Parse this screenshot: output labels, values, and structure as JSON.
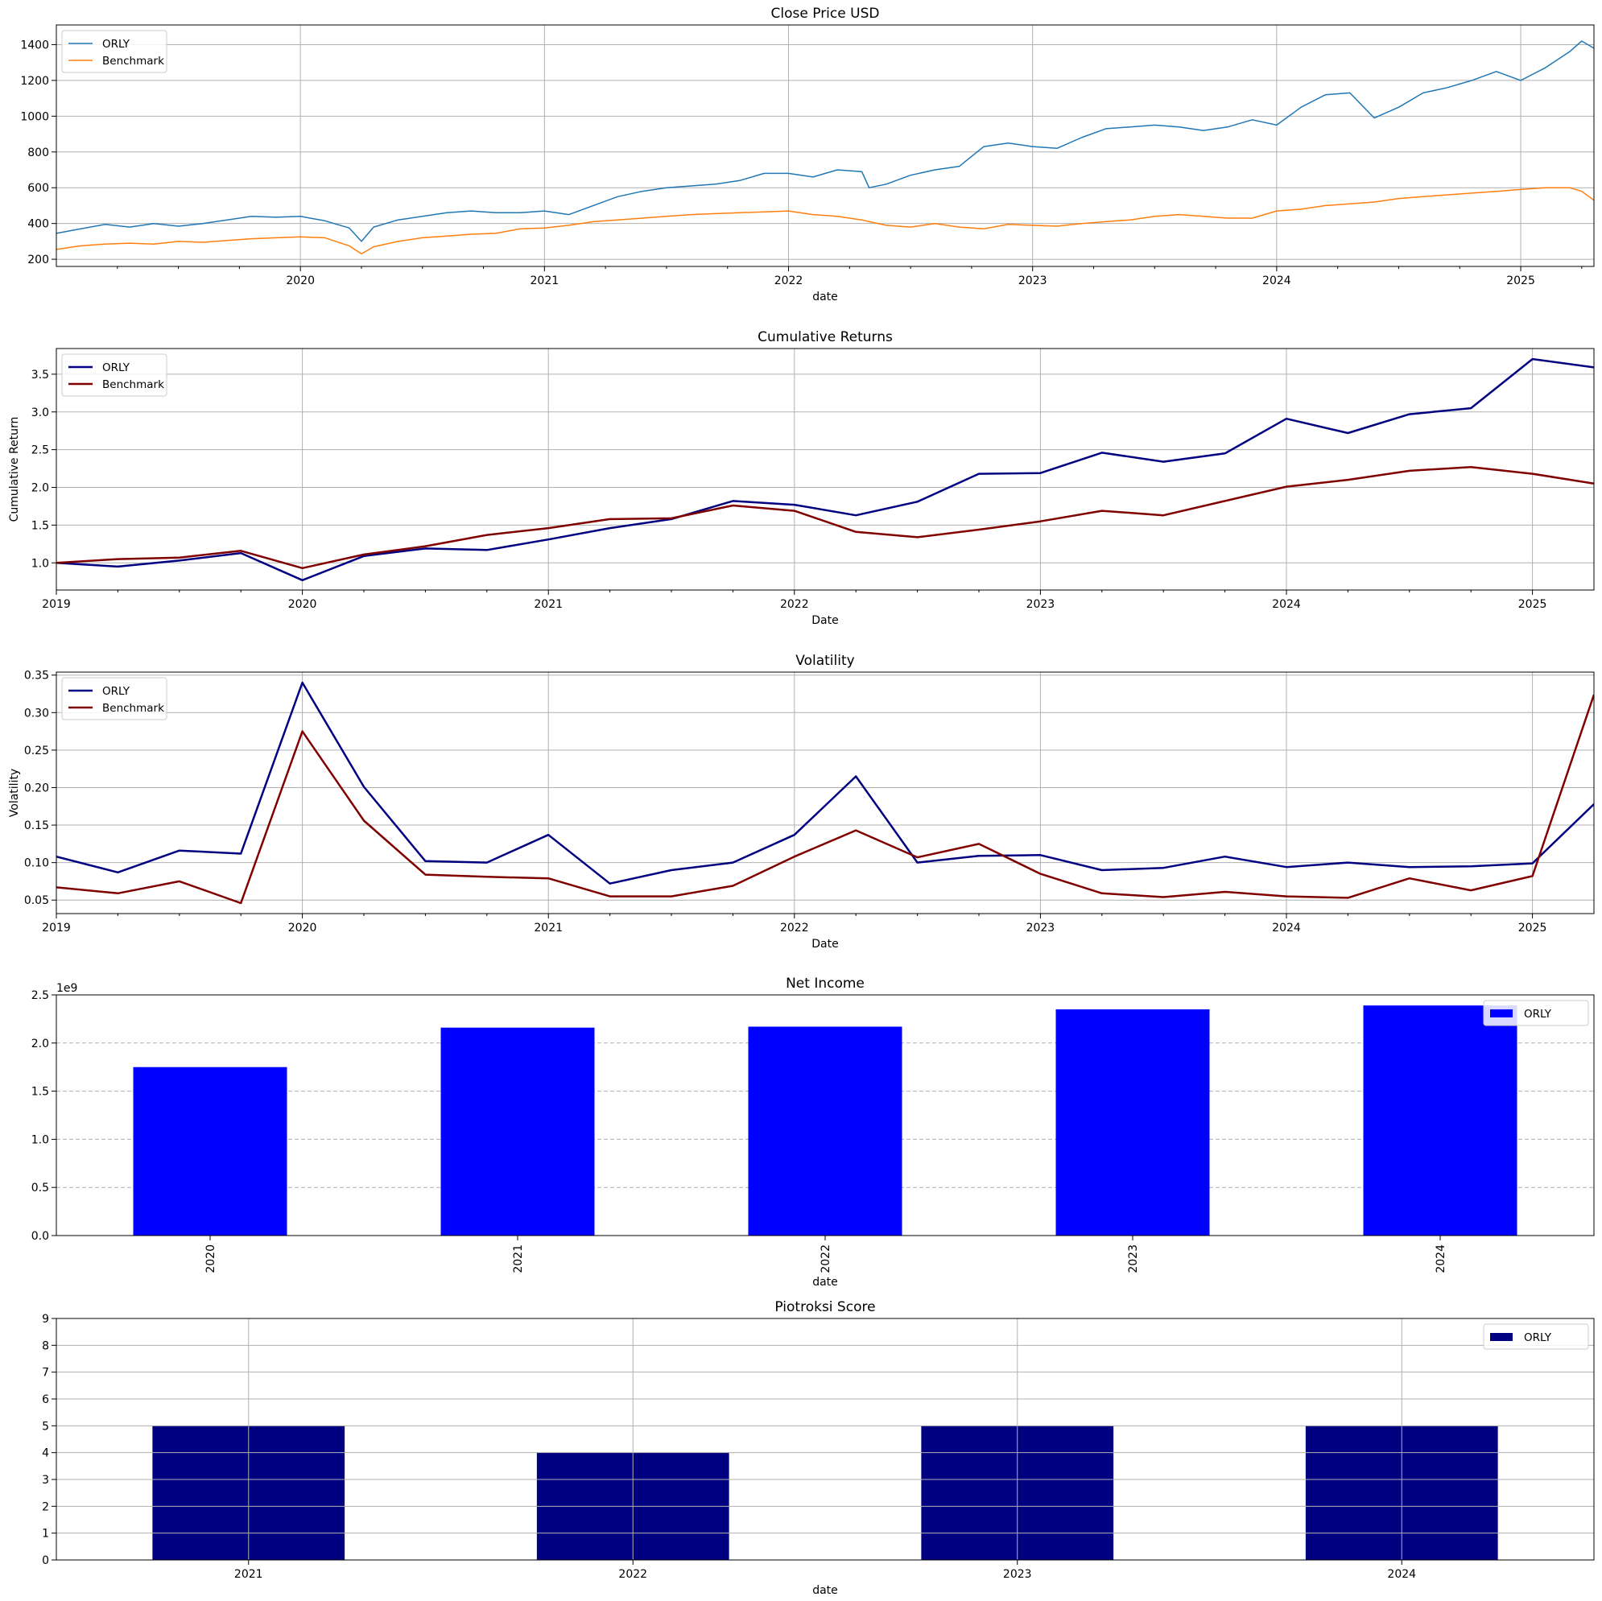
{
  "figure": {
    "background": "#ffffff"
  },
  "chart_data": [
    {
      "id": "close-price",
      "type": "line",
      "title": "Close Price USD",
      "xlabel": "date",
      "ylabel": "",
      "xlim": [
        2019.0,
        2025.3
      ],
      "ylim": [
        160,
        1510
      ],
      "xticks": [
        2020,
        2021,
        2022,
        2023,
        2024,
        2025
      ],
      "xticklabels": [
        "2020",
        "2021",
        "2022",
        "2023",
        "2024",
        "2025"
      ],
      "minor_xticks": true,
      "yticks": [
        200,
        400,
        600,
        800,
        1000,
        1200,
        1400
      ],
      "yticklabels": [
        "200",
        "400",
        "600",
        "800",
        "1000",
        "1200",
        "1400"
      ],
      "grid": true,
      "legend_position": "top-left",
      "x": [
        2019.0,
        2019.1,
        2019.2,
        2019.3,
        2019.4,
        2019.5,
        2019.6,
        2019.7,
        2019.8,
        2019.9,
        2020.0,
        2020.1,
        2020.2,
        2020.25,
        2020.3,
        2020.4,
        2020.5,
        2020.6,
        2020.7,
        2020.8,
        2020.9,
        2021.0,
        2021.1,
        2021.2,
        2021.3,
        2021.4,
        2021.5,
        2021.6,
        2021.7,
        2021.8,
        2021.9,
        2022.0,
        2022.1,
        2022.2,
        2022.3,
        2022.33,
        2022.4,
        2022.5,
        2022.6,
        2022.7,
        2022.8,
        2022.9,
        2023.0,
        2023.1,
        2023.2,
        2023.3,
        2023.4,
        2023.5,
        2023.6,
        2023.7,
        2023.8,
        2023.9,
        2024.0,
        2024.1,
        2024.2,
        2024.3,
        2024.4,
        2024.5,
        2024.6,
        2024.7,
        2024.8,
        2024.9,
        2025.0,
        2025.1,
        2025.2,
        2025.25,
        2025.3
      ],
      "series": [
        {
          "name": "ORLY",
          "color": "#1f77b4",
          "width": 1.5,
          "values": [
            345,
            370,
            395,
            380,
            400,
            385,
            400,
            420,
            440,
            435,
            440,
            415,
            375,
            300,
            380,
            420,
            440,
            460,
            470,
            460,
            460,
            470,
            450,
            500,
            550,
            580,
            600,
            610,
            620,
            640,
            680,
            680,
            660,
            700,
            690,
            600,
            620,
            670,
            700,
            720,
            830,
            850,
            830,
            820,
            880,
            930,
            940,
            950,
            940,
            920,
            940,
            980,
            950,
            1050,
            1120,
            1130,
            990,
            1050,
            1130,
            1160,
            1200,
            1250,
            1200,
            1270,
            1360,
            1420,
            1380
          ]
        },
        {
          "name": "Benchmark",
          "color": "#ff7f0e",
          "width": 1.5,
          "values": [
            255,
            275,
            285,
            290,
            285,
            300,
            295,
            305,
            315,
            320,
            325,
            320,
            275,
            230,
            270,
            300,
            320,
            330,
            340,
            345,
            370,
            375,
            390,
            410,
            420,
            430,
            440,
            450,
            455,
            460,
            465,
            470,
            450,
            440,
            420,
            410,
            390,
            380,
            400,
            380,
            370,
            395,
            390,
            385,
            400,
            410,
            420,
            440,
            450,
            440,
            430,
            430,
            470,
            480,
            500,
            510,
            520,
            540,
            550,
            560,
            570,
            580,
            590,
            600,
            600,
            580,
            530
          ]
        }
      ]
    },
    {
      "id": "cumulative-returns",
      "type": "line",
      "title": "Cumulative Returns",
      "xlabel": "Date",
      "ylabel": "Cumulative Return",
      "xlim": [
        2019.0,
        2025.25
      ],
      "ylim": [
        0.64,
        3.84
      ],
      "xticks": [
        2019,
        2020,
        2021,
        2022,
        2023,
        2024,
        2025
      ],
      "xticklabels": [
        "2019",
        "2020",
        "2021",
        "2022",
        "2023",
        "2024",
        "2025"
      ],
      "minor_xticks": true,
      "yticks": [
        1.0,
        1.5,
        2.0,
        2.5,
        3.0,
        3.5
      ],
      "yticklabels": [
        "1.0",
        "1.5",
        "2.0",
        "2.5",
        "3.0",
        "3.5"
      ],
      "grid": true,
      "legend_position": "top-left",
      "x": [
        2019.0,
        2019.25,
        2019.5,
        2019.75,
        2020.0,
        2020.25,
        2020.5,
        2020.75,
        2021.0,
        2021.25,
        2021.5,
        2021.75,
        2022.0,
        2022.25,
        2022.5,
        2022.75,
        2023.0,
        2023.25,
        2023.5,
        2023.75,
        2024.0,
        2024.25,
        2024.5,
        2024.75,
        2025.0,
        2025.25
      ],
      "series": [
        {
          "name": "ORLY",
          "color": "#000080",
          "width": 2.5,
          "values": [
            1.0,
            0.95,
            1.03,
            1.13,
            0.77,
            1.09,
            1.19,
            1.17,
            1.31,
            1.46,
            1.58,
            1.82,
            1.77,
            1.63,
            1.81,
            2.18,
            2.19,
            2.46,
            2.34,
            2.45,
            2.91,
            2.72,
            2.97,
            3.05,
            3.7,
            3.59
          ]
        },
        {
          "name": "Benchmark",
          "color": "#800000",
          "width": 2.5,
          "values": [
            1.0,
            1.05,
            1.07,
            1.16,
            0.93,
            1.11,
            1.22,
            1.37,
            1.46,
            1.58,
            1.59,
            1.76,
            1.69,
            1.41,
            1.34,
            1.44,
            1.55,
            1.69,
            1.63,
            1.82,
            2.01,
            2.1,
            2.22,
            2.27,
            2.18,
            2.05
          ]
        }
      ]
    },
    {
      "id": "volatility",
      "type": "line",
      "title": "Volatility",
      "xlabel": "Date",
      "ylabel": "Volatility",
      "xlim": [
        2019.0,
        2025.25
      ],
      "ylim": [
        0.032,
        0.354
      ],
      "xticks": [
        2019,
        2020,
        2021,
        2022,
        2023,
        2024,
        2025
      ],
      "xticklabels": [
        "2019",
        "2020",
        "2021",
        "2022",
        "2023",
        "2024",
        "2025"
      ],
      "minor_xticks": true,
      "yticks": [
        0.05,
        0.1,
        0.15,
        0.2,
        0.25,
        0.3,
        0.35
      ],
      "yticklabels": [
        "0.05",
        "0.10",
        "0.15",
        "0.20",
        "0.25",
        "0.30",
        "0.35"
      ],
      "grid": true,
      "legend_position": "top-left",
      "x": [
        2019.0,
        2019.25,
        2019.5,
        2019.75,
        2020.0,
        2020.25,
        2020.5,
        2020.75,
        2021.0,
        2021.25,
        2021.5,
        2021.75,
        2022.0,
        2022.25,
        2022.5,
        2022.75,
        2023.0,
        2023.25,
        2023.5,
        2023.75,
        2024.0,
        2024.25,
        2024.5,
        2024.75,
        2025.0,
        2025.25
      ],
      "series": [
        {
          "name": "ORLY",
          "color": "#000080",
          "width": 2.5,
          "values": [
            0.108,
            0.087,
            0.116,
            0.112,
            0.34,
            0.201,
            0.102,
            0.1,
            0.137,
            0.072,
            0.09,
            0.1,
            0.137,
            0.215,
            0.1,
            0.109,
            0.11,
            0.09,
            0.093,
            0.108,
            0.094,
            0.1,
            0.094,
            0.095,
            0.099,
            0.178
          ]
        },
        {
          "name": "Benchmark",
          "color": "#800000",
          "width": 2.5,
          "values": [
            0.067,
            0.059,
            0.075,
            0.046,
            0.275,
            0.156,
            0.084,
            0.081,
            0.079,
            0.055,
            0.055,
            0.069,
            0.108,
            0.143,
            0.107,
            0.125,
            0.085,
            0.059,
            0.054,
            0.061,
            0.055,
            0.053,
            0.079,
            0.063,
            0.082,
            0.324
          ]
        }
      ]
    },
    {
      "id": "net-income",
      "type": "bar",
      "title": "Net Income",
      "xlabel": "date",
      "ylabel": "",
      "exponent_label": "1e9",
      "categories": [
        "2020",
        "2021",
        "2022",
        "2023",
        "2024"
      ],
      "category_label_rotation": -90,
      "bar_width_fraction": 0.5,
      "ylim": [
        0,
        2.5
      ],
      "yticks": [
        0.0,
        0.5,
        1.0,
        1.5,
        2.0,
        2.5
      ],
      "yticklabels": [
        "0.0",
        "0.5",
        "1.0",
        "1.5",
        "2.0",
        "2.5"
      ],
      "grid": "y-dashed",
      "legend_position": "top-right",
      "series": [
        {
          "name": "ORLY",
          "color": "#0000ff",
          "values": [
            1.75,
            2.16,
            2.17,
            2.35,
            2.39
          ]
        }
      ]
    },
    {
      "id": "piotroksi-score",
      "type": "bar",
      "title": "Piotroksi Score",
      "xlabel": "date",
      "ylabel": "",
      "categories": [
        "2021",
        "2022",
        "2023",
        "2024"
      ],
      "category_label_rotation": 0,
      "bar_width_fraction": 0.5,
      "ylim": [
        0,
        9
      ],
      "yticks": [
        0,
        1,
        2,
        3,
        4,
        5,
        6,
        7,
        8,
        9
      ],
      "yticklabels": [
        "0",
        "1",
        "2",
        "3",
        "4",
        "5",
        "6",
        "7",
        "8",
        "9"
      ],
      "grid": "both-over",
      "legend_position": "top-right",
      "series": [
        {
          "name": "ORLY",
          "color": "#000080",
          "values": [
            5,
            4,
            5,
            5
          ]
        }
      ]
    }
  ]
}
